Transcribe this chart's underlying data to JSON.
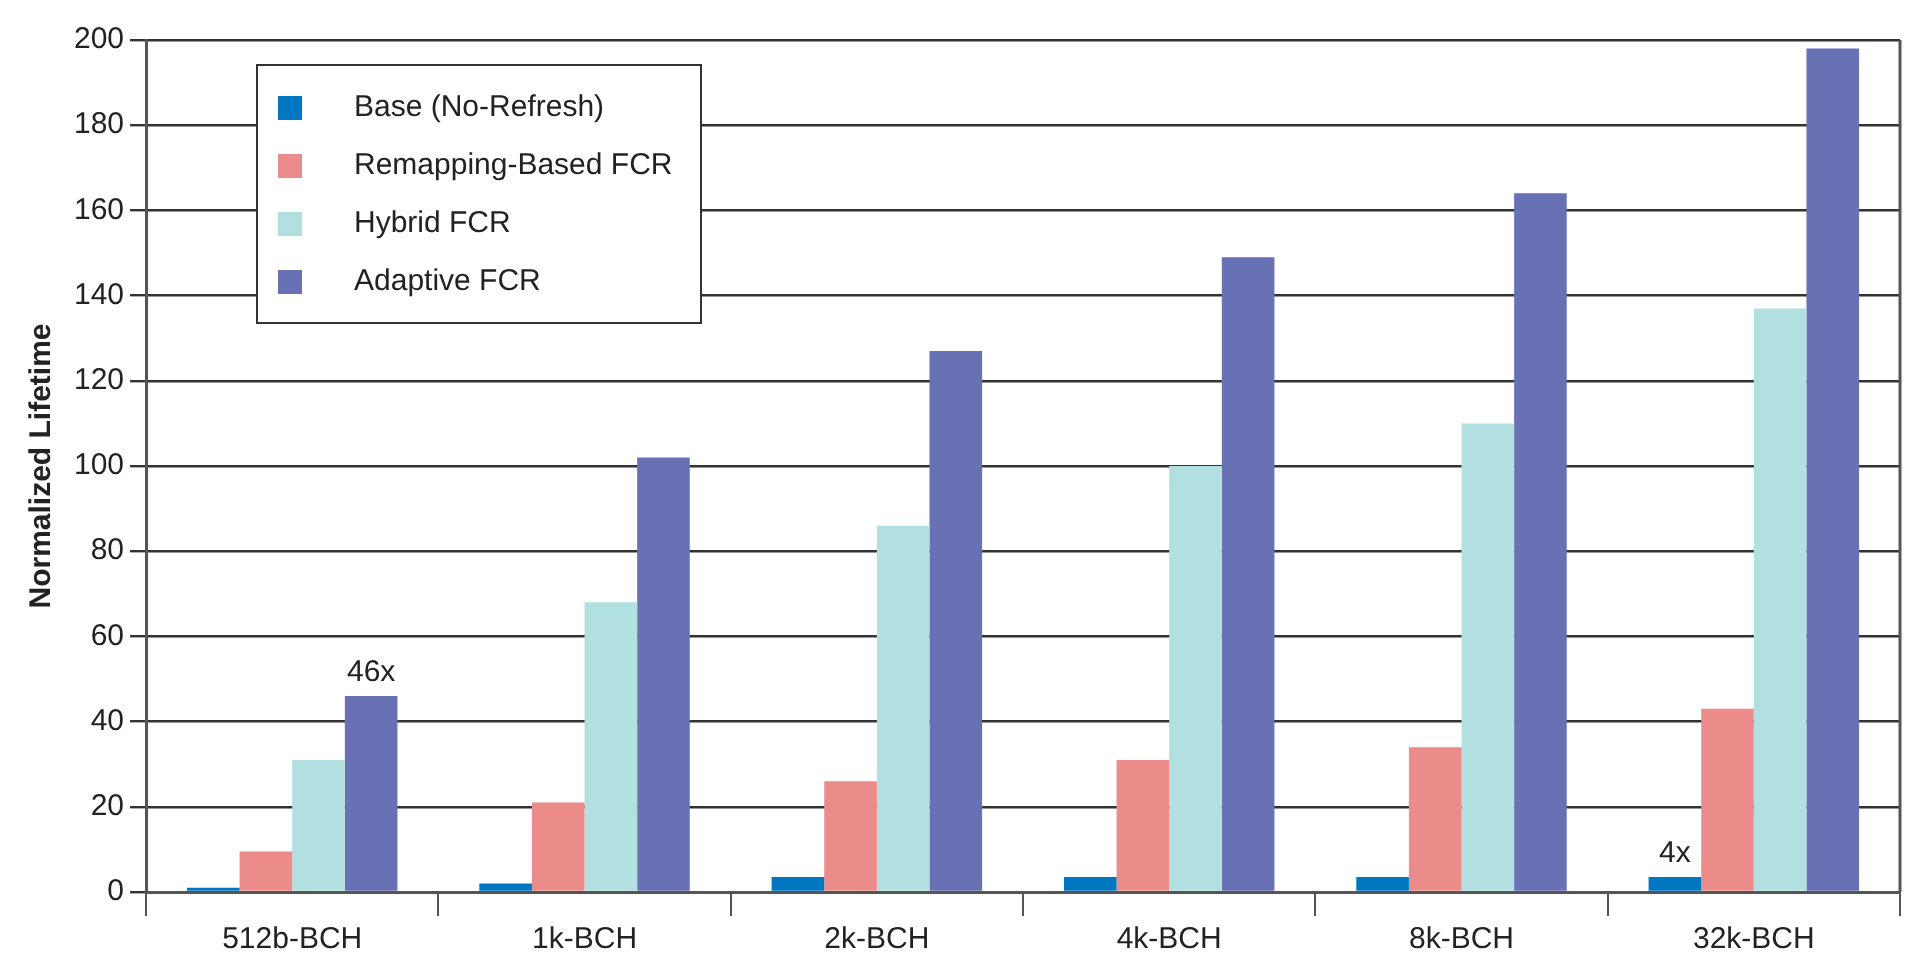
{
  "chart_data": {
    "type": "bar",
    "ylabel": "Normalized Lifetime",
    "categories": [
      "512b-BCH",
      "1k-BCH",
      "2k-BCH",
      "4k-BCH",
      "8k-BCH",
      "32k-BCH"
    ],
    "series": [
      {
        "name": "Base (No-Refresh)",
        "color": "#0077c0",
        "values": [
          1,
          2,
          3.5,
          3.5,
          3.5,
          3.5
        ]
      },
      {
        "name": "Remapping-Based FCR",
        "color": "#eb8c8a",
        "values": [
          9.5,
          21,
          26,
          31,
          34,
          43
        ]
      },
      {
        "name": "Hybrid FCR",
        "color": "#b2dfe0",
        "values": [
          31,
          68,
          86,
          100,
          110,
          137
        ]
      },
      {
        "name": "Adaptive FCR",
        "color": "#6971b5",
        "values": [
          46,
          102,
          127,
          149,
          164,
          198
        ]
      }
    ],
    "ylim": [
      0,
      200
    ],
    "yticks": [
      0,
      20,
      40,
      60,
      80,
      100,
      120,
      140,
      160,
      180,
      200
    ],
    "grid": "y",
    "legend": "top left",
    "annotations": [
      "46x",
      "4x"
    ]
  }
}
